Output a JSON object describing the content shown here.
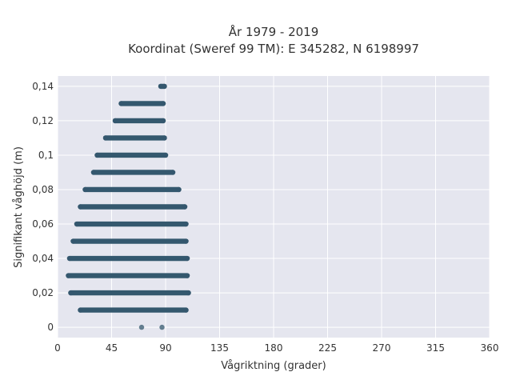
{
  "chart_data": {
    "type": "scatter",
    "title": [
      "År 1979 - 2019",
      "Koordinat (Sweref 99 TM): E 345282, N 6198997"
    ],
    "xlabel": "Vågriktning (grader)",
    "ylabel": "Signifikant våghöjd (m)",
    "xlim": [
      0,
      360
    ],
    "ylim": [
      -0.006,
      0.146
    ],
    "x_ticks": [
      0,
      45,
      90,
      135,
      180,
      225,
      270,
      315,
      360
    ],
    "x_tick_labels": [
      "0",
      "45",
      "90",
      "135",
      "180",
      "225",
      "270",
      "315",
      "360"
    ],
    "y_ticks": [
      0,
      0.02,
      0.04,
      0.06,
      0.08,
      0.1,
      0.12,
      0.14
    ],
    "y_tick_labels": [
      "0",
      "0,02",
      "0,04",
      "0,06",
      "0,08",
      "0,1",
      "0,12",
      "0,14"
    ],
    "grid": true,
    "marker_color": "#34586e",
    "background_color": "#e5e6ef",
    "bands": [
      {
        "y": 0.14,
        "x_min": 86,
        "x_max": 89
      },
      {
        "y": 0.13,
        "x_min": 53,
        "x_max": 88
      },
      {
        "y": 0.12,
        "x_min": 48,
        "x_max": 88
      },
      {
        "y": 0.11,
        "x_min": 40,
        "x_max": 89
      },
      {
        "y": 0.1,
        "x_min": 33,
        "x_max": 90
      },
      {
        "y": 0.09,
        "x_min": 30,
        "x_max": 96
      },
      {
        "y": 0.08,
        "x_min": 23,
        "x_max": 101
      },
      {
        "y": 0.07,
        "x_min": 19,
        "x_max": 106
      },
      {
        "y": 0.06,
        "x_min": 16,
        "x_max": 107
      },
      {
        "y": 0.05,
        "x_min": 13,
        "x_max": 107
      },
      {
        "y": 0.04,
        "x_min": 10,
        "x_max": 108
      },
      {
        "y": 0.03,
        "x_min": 9,
        "x_max": 108
      },
      {
        "y": 0.02,
        "x_min": 11,
        "x_max": 109
      },
      {
        "y": 0.01,
        "x_min": 19,
        "x_max": 107
      }
    ],
    "points": [
      {
        "x": 70,
        "y": 0
      },
      {
        "x": 87,
        "y": 0
      }
    ]
  }
}
